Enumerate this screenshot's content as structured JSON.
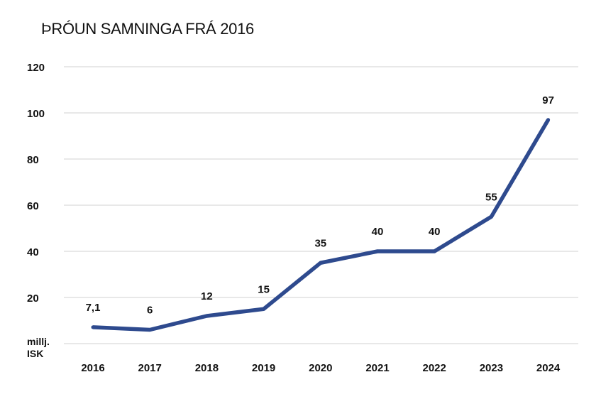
{
  "chart_data": {
    "type": "line",
    "title": "ÞRÓUN SAMNINGA FRÁ 2016",
    "categories": [
      "2016",
      "2017",
      "2018",
      "2019",
      "2020",
      "2021",
      "2022",
      "2023",
      "2024"
    ],
    "series": [
      {
        "values": [
          7.1,
          6,
          12,
          15,
          35,
          40,
          40,
          55,
          97
        ],
        "labels": [
          "7,1",
          "6",
          "12",
          "15",
          "35",
          "40",
          "40",
          "55",
          "97"
        ],
        "color": "#2e4a8e"
      }
    ],
    "y_ticks": [
      "120",
      "100",
      "80",
      "60",
      "40",
      "20"
    ],
    "y_tick_values": [
      120,
      100,
      80,
      60,
      40,
      20
    ],
    "ylim": [
      0,
      120
    ],
    "unit_label": [
      "millj.",
      "ISK"
    ],
    "grid": true
  }
}
